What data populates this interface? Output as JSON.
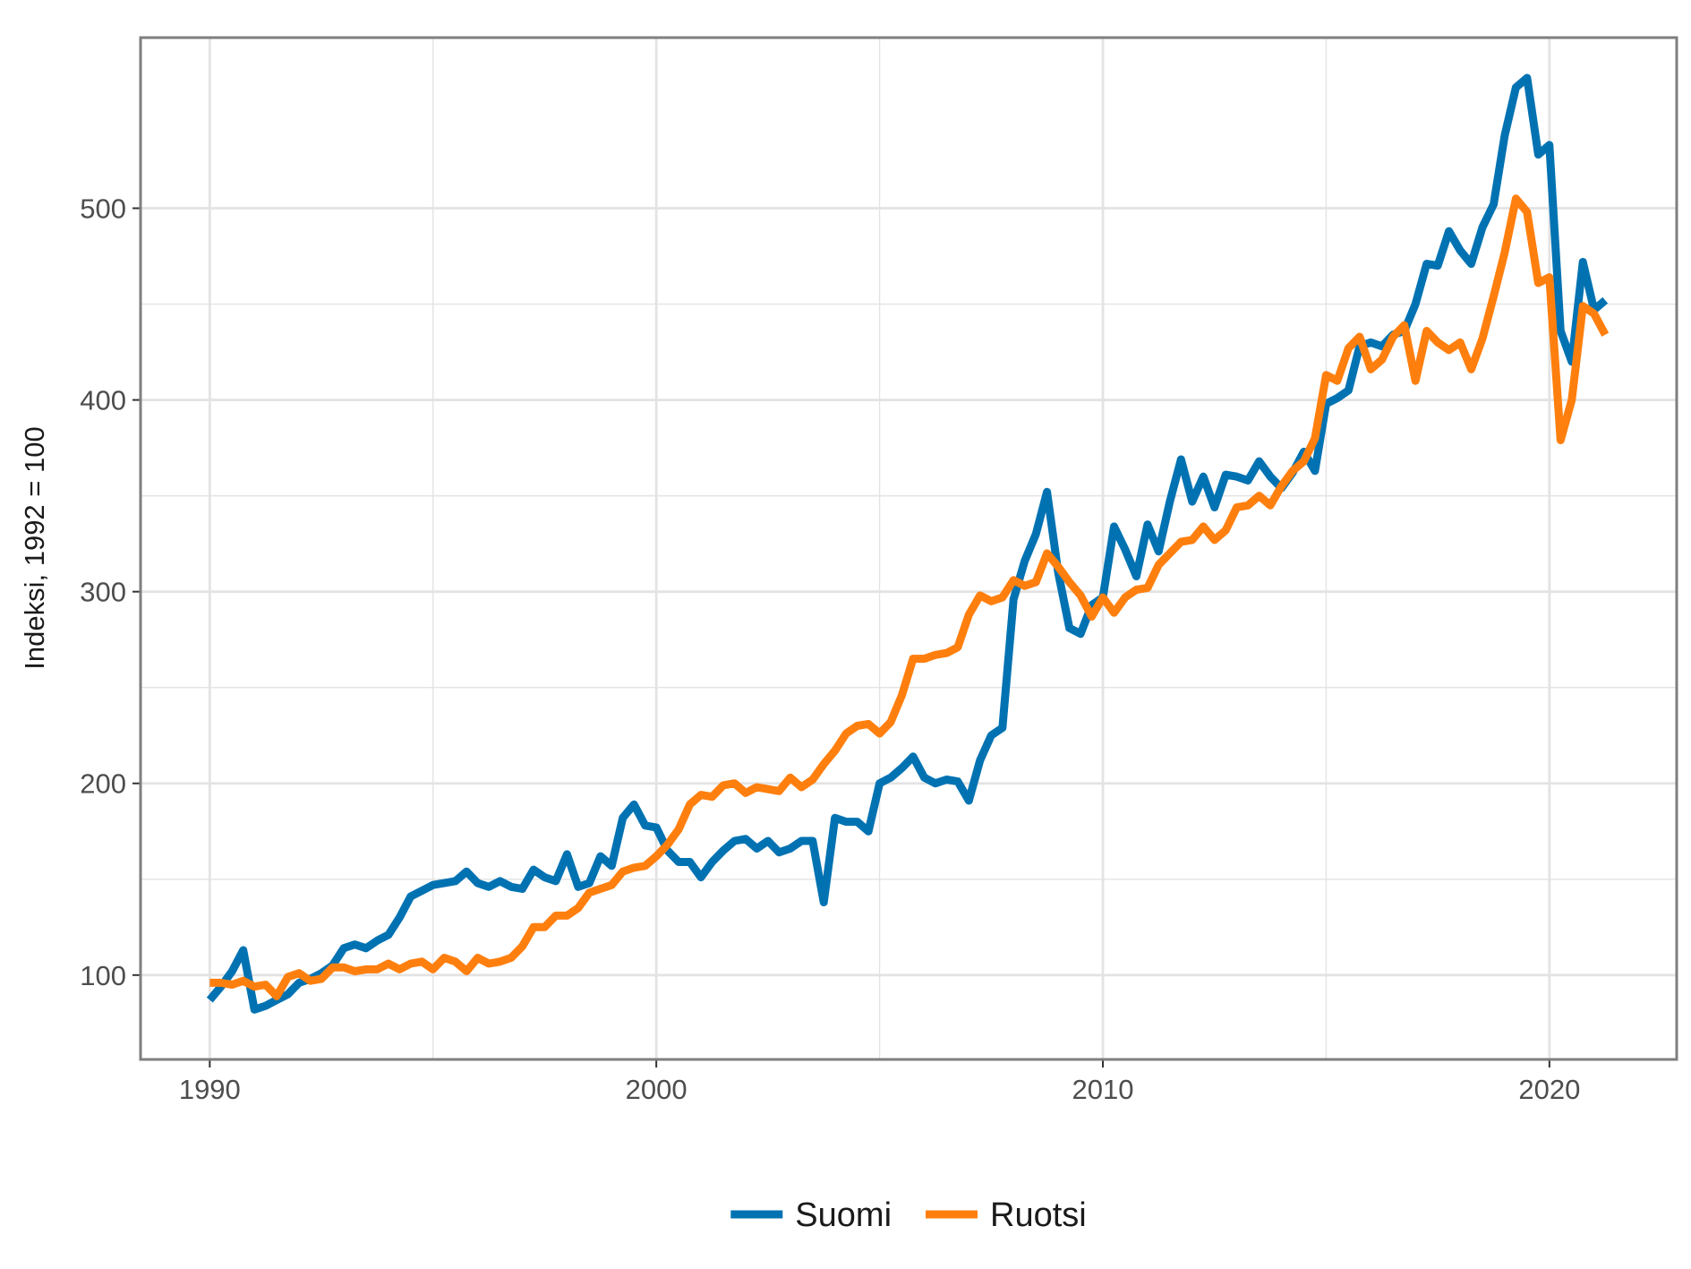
{
  "chart_data": {
    "type": "line",
    "ylabel": "Indeksi, 1992 = 100",
    "xlabel": "",
    "xlim": [
      1988.45,
      2022.85
    ],
    "ylim": [
      56,
      589
    ],
    "x_ticks": [
      {
        "value": 1990,
        "label": "1990"
      },
      {
        "value": 2000,
        "label": "2000"
      },
      {
        "value": 2010,
        "label": "2010"
      },
      {
        "value": 2020,
        "label": "2020"
      }
    ],
    "y_ticks": [
      {
        "value": 100,
        "label": "100"
      },
      {
        "value": 200,
        "label": "200"
      },
      {
        "value": 300,
        "label": "300"
      },
      {
        "value": 400,
        "label": "400"
      },
      {
        "value": 500,
        "label": "500"
      }
    ],
    "grid": true,
    "legend": {
      "position": "bottom"
    },
    "series": [
      {
        "name": "Suomi",
        "color": "#0072B2",
        "points": [
          [
            1990.0,
            87
          ],
          [
            1990.25,
            94
          ],
          [
            1990.5,
            102
          ],
          [
            1990.75,
            113
          ],
          [
            1991.0,
            82
          ],
          [
            1991.25,
            84
          ],
          [
            1991.5,
            87
          ],
          [
            1991.75,
            90
          ],
          [
            1992.0,
            96
          ],
          [
            1992.25,
            98
          ],
          [
            1992.5,
            101
          ],
          [
            1992.75,
            105
          ],
          [
            1993.0,
            114
          ],
          [
            1993.25,
            116
          ],
          [
            1993.5,
            114
          ],
          [
            1993.75,
            118
          ],
          [
            1994.0,
            121
          ],
          [
            1994.25,
            130
          ],
          [
            1994.5,
            141
          ],
          [
            1994.75,
            144
          ],
          [
            1995.0,
            147
          ],
          [
            1995.25,
            148
          ],
          [
            1995.5,
            149
          ],
          [
            1995.75,
            154
          ],
          [
            1996.0,
            148
          ],
          [
            1996.25,
            146
          ],
          [
            1996.5,
            149
          ],
          [
            1996.75,
            146
          ],
          [
            1997.0,
            145
          ],
          [
            1997.25,
            155
          ],
          [
            1997.5,
            151
          ],
          [
            1997.75,
            149
          ],
          [
            1998.0,
            163
          ],
          [
            1998.25,
            146
          ],
          [
            1998.5,
            148
          ],
          [
            1998.75,
            162
          ],
          [
            1999.0,
            157
          ],
          [
            1999.25,
            182
          ],
          [
            1999.5,
            189
          ],
          [
            1999.75,
            178
          ],
          [
            2000.0,
            177
          ],
          [
            2000.25,
            165
          ],
          [
            2000.5,
            159
          ],
          [
            2000.75,
            159
          ],
          [
            2001.0,
            151
          ],
          [
            2001.25,
            159
          ],
          [
            2001.5,
            165
          ],
          [
            2001.75,
            170
          ],
          [
            2002.0,
            171
          ],
          [
            2002.25,
            166
          ],
          [
            2002.5,
            170
          ],
          [
            2002.75,
            164
          ],
          [
            2003.0,
            166
          ],
          [
            2003.25,
            170
          ],
          [
            2003.5,
            170
          ],
          [
            2003.75,
            138
          ],
          [
            2004.0,
            182
          ],
          [
            2004.25,
            180
          ],
          [
            2004.5,
            180
          ],
          [
            2004.75,
            175
          ],
          [
            2005.0,
            200
          ],
          [
            2005.25,
            203
          ],
          [
            2005.5,
            208
          ],
          [
            2005.75,
            214
          ],
          [
            2006.0,
            203
          ],
          [
            2006.25,
            200
          ],
          [
            2006.5,
            202
          ],
          [
            2006.75,
            201
          ],
          [
            2007.0,
            191
          ],
          [
            2007.25,
            212
          ],
          [
            2007.5,
            225
          ],
          [
            2007.75,
            229
          ],
          [
            2008.0,
            296
          ],
          [
            2008.25,
            316
          ],
          [
            2008.5,
            330
          ],
          [
            2008.75,
            352
          ],
          [
            2009.0,
            310
          ],
          [
            2009.25,
            281
          ],
          [
            2009.5,
            278
          ],
          [
            2009.75,
            293
          ],
          [
            2010.0,
            297
          ],
          [
            2010.25,
            334
          ],
          [
            2010.5,
            322
          ],
          [
            2010.75,
            308
          ],
          [
            2011.0,
            335
          ],
          [
            2011.25,
            321
          ],
          [
            2011.5,
            347
          ],
          [
            2011.75,
            369
          ],
          [
            2012.0,
            347
          ],
          [
            2012.25,
            360
          ],
          [
            2012.5,
            344
          ],
          [
            2012.75,
            361
          ],
          [
            2013.0,
            360
          ],
          [
            2013.25,
            358
          ],
          [
            2013.5,
            368
          ],
          [
            2013.75,
            360
          ],
          [
            2014.0,
            354
          ],
          [
            2014.25,
            362
          ],
          [
            2014.5,
            373
          ],
          [
            2014.75,
            363
          ],
          [
            2015.0,
            398
          ],
          [
            2015.25,
            401
          ],
          [
            2015.5,
            405
          ],
          [
            2015.75,
            428
          ],
          [
            2016.0,
            430
          ],
          [
            2016.25,
            428
          ],
          [
            2016.5,
            434
          ],
          [
            2016.75,
            436
          ],
          [
            2017.0,
            450
          ],
          [
            2017.25,
            471
          ],
          [
            2017.5,
            470
          ],
          [
            2017.75,
            488
          ],
          [
            2018.0,
            478
          ],
          [
            2018.25,
            471
          ],
          [
            2018.5,
            490
          ],
          [
            2018.75,
            502
          ],
          [
            2019.0,
            538
          ],
          [
            2019.25,
            563
          ],
          [
            2019.5,
            568
          ],
          [
            2019.75,
            528
          ],
          [
            2020.0,
            533
          ],
          [
            2020.25,
            436
          ],
          [
            2020.5,
            420
          ],
          [
            2020.75,
            472
          ],
          [
            2021.0,
            447
          ],
          [
            2021.25,
            452
          ]
        ]
      },
      {
        "name": "Ruotsi",
        "color": "#FF7F0E",
        "points": [
          [
            1990.0,
            96
          ],
          [
            1990.25,
            96
          ],
          [
            1990.5,
            95
          ],
          [
            1990.75,
            97
          ],
          [
            1991.0,
            94
          ],
          [
            1991.25,
            95
          ],
          [
            1991.5,
            89
          ],
          [
            1991.75,
            99
          ],
          [
            1992.0,
            101
          ],
          [
            1992.25,
            97
          ],
          [
            1992.5,
            98
          ],
          [
            1992.75,
            104
          ],
          [
            1993.0,
            104
          ],
          [
            1993.25,
            102
          ],
          [
            1993.5,
            103
          ],
          [
            1993.75,
            103
          ],
          [
            1994.0,
            106
          ],
          [
            1994.25,
            103
          ],
          [
            1994.5,
            106
          ],
          [
            1994.75,
            107
          ],
          [
            1995.0,
            103
          ],
          [
            1995.25,
            109
          ],
          [
            1995.5,
            107
          ],
          [
            1995.75,
            102
          ],
          [
            1996.0,
            109
          ],
          [
            1996.25,
            106
          ],
          [
            1996.5,
            107
          ],
          [
            1996.75,
            109
          ],
          [
            1997.0,
            115
          ],
          [
            1997.25,
            125
          ],
          [
            1997.5,
            125
          ],
          [
            1997.75,
            131
          ],
          [
            1998.0,
            131
          ],
          [
            1998.25,
            135
          ],
          [
            1998.5,
            143
          ],
          [
            1998.75,
            145
          ],
          [
            1999.0,
            147
          ],
          [
            1999.25,
            154
          ],
          [
            1999.5,
            156
          ],
          [
            1999.75,
            157
          ],
          [
            2000.0,
            162
          ],
          [
            2000.25,
            168
          ],
          [
            2000.5,
            176
          ],
          [
            2000.75,
            189
          ],
          [
            2001.0,
            194
          ],
          [
            2001.25,
            193
          ],
          [
            2001.5,
            199
          ],
          [
            2001.75,
            200
          ],
          [
            2002.0,
            195
          ],
          [
            2002.25,
            198
          ],
          [
            2002.5,
            197
          ],
          [
            2002.75,
            196
          ],
          [
            2003.0,
            203
          ],
          [
            2003.25,
            198
          ],
          [
            2003.5,
            202
          ],
          [
            2003.75,
            210
          ],
          [
            2004.0,
            217
          ],
          [
            2004.25,
            226
          ],
          [
            2004.5,
            230
          ],
          [
            2004.75,
            231
          ],
          [
            2005.0,
            226
          ],
          [
            2005.25,
            232
          ],
          [
            2005.5,
            246
          ],
          [
            2005.75,
            265
          ],
          [
            2006.0,
            265
          ],
          [
            2006.25,
            267
          ],
          [
            2006.5,
            268
          ],
          [
            2006.75,
            271
          ],
          [
            2007.0,
            288
          ],
          [
            2007.25,
            298
          ],
          [
            2007.5,
            295
          ],
          [
            2007.75,
            297
          ],
          [
            2008.0,
            306
          ],
          [
            2008.25,
            303
          ],
          [
            2008.5,
            305
          ],
          [
            2008.75,
            320
          ],
          [
            2009.0,
            313
          ],
          [
            2009.25,
            305
          ],
          [
            2009.5,
            298
          ],
          [
            2009.75,
            287
          ],
          [
            2010.0,
            297
          ],
          [
            2010.25,
            289
          ],
          [
            2010.5,
            297
          ],
          [
            2010.75,
            301
          ],
          [
            2011.0,
            302
          ],
          [
            2011.25,
            314
          ],
          [
            2011.5,
            320
          ],
          [
            2011.75,
            326
          ],
          [
            2012.0,
            327
          ],
          [
            2012.25,
            334
          ],
          [
            2012.5,
            327
          ],
          [
            2012.75,
            332
          ],
          [
            2013.0,
            344
          ],
          [
            2013.25,
            345
          ],
          [
            2013.5,
            350
          ],
          [
            2013.75,
            345
          ],
          [
            2014.0,
            355
          ],
          [
            2014.25,
            363
          ],
          [
            2014.5,
            368
          ],
          [
            2014.75,
            380
          ],
          [
            2015.0,
            413
          ],
          [
            2015.25,
            410
          ],
          [
            2015.5,
            427
          ],
          [
            2015.75,
            433
          ],
          [
            2016.0,
            416
          ],
          [
            2016.25,
            421
          ],
          [
            2016.5,
            433
          ],
          [
            2016.75,
            439
          ],
          [
            2017.0,
            410
          ],
          [
            2017.25,
            436
          ],
          [
            2017.5,
            430
          ],
          [
            2017.75,
            426
          ],
          [
            2018.0,
            430
          ],
          [
            2018.25,
            416
          ],
          [
            2018.5,
            432
          ],
          [
            2018.75,
            454
          ],
          [
            2019.0,
            477
          ],
          [
            2019.25,
            505
          ],
          [
            2019.5,
            498
          ],
          [
            2019.75,
            461
          ],
          [
            2020.0,
            464
          ],
          [
            2020.25,
            379
          ],
          [
            2020.5,
            400
          ],
          [
            2020.75,
            449
          ],
          [
            2021.0,
            445
          ],
          [
            2021.25,
            434
          ]
        ]
      }
    ]
  }
}
